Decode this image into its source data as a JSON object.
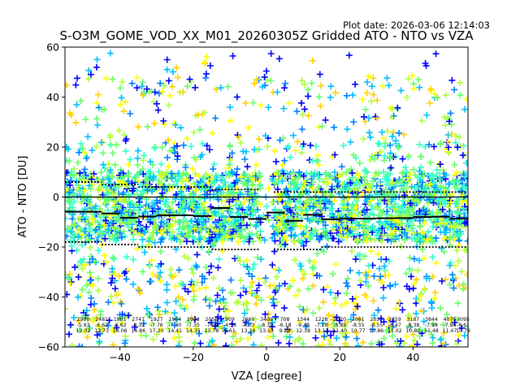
{
  "chart_data": {
    "type": "scatter",
    "title": "S-O3M_GOME_VOD_XX_M01_20260305Z Gridded ATO - NTO vs VZA",
    "plot_date": "Plot date: 2026-03-06 12:14:03",
    "xlabel": "VZA [degree]",
    "ylabel": "ATO - NTO [DU]",
    "xlim": [
      -55,
      55
    ],
    "ylim": [
      -60,
      60
    ],
    "xticks": [
      -40,
      -20,
      0,
      20,
      40
    ],
    "yticks": [
      -60,
      -40,
      -20,
      0,
      20,
      40,
      60
    ],
    "xtick_labels": [
      "−40",
      "−20",
      "0",
      "20",
      "40"
    ],
    "ytick_labels": [
      "−60",
      "−40",
      "−20",
      "0",
      "20",
      "40",
      "60"
    ],
    "marker": "+",
    "colors": {
      "blue": "#0000ff",
      "azure": "#0080ff",
      "cyan": "#00c0ff",
      "aqua": "#33ffcc",
      "green": "#66ff66",
      "lime": "#b0ff40",
      "yellow": "#ffff00",
      "gold": "#ffd000",
      "median_line": "#000000",
      "zero_line": "#000000"
    },
    "density_band": {
      "lower": -30,
      "upper": 22,
      "core_lower": -18,
      "core_upper": 10
    },
    "median_steps": [
      {
        "x0": -55,
        "x1": -45,
        "y": -5.9
      },
      {
        "x0": -45,
        "x1": -40,
        "y": -6.6
      },
      {
        "x0": -40,
        "x1": -35,
        "y": -8.3
      },
      {
        "x0": -35,
        "x1": -30,
        "y": -7.8
      },
      {
        "x0": -30,
        "x1": -25,
        "y": -7.3
      },
      {
        "x0": -25,
        "x1": -20,
        "y": -7.3
      },
      {
        "x0": -20,
        "x1": -15,
        "y": -7.6
      },
      {
        "x0": -15,
        "x1": -10,
        "y": -4.4
      },
      {
        "x0": -10,
        "x1": -5,
        "y": -8.0
      },
      {
        "x0": -5,
        "x1": 0,
        "y": -8.8
      },
      {
        "x0": 0,
        "x1": 5,
        "y": -6.2
      },
      {
        "x0": 5,
        "x1": 10,
        "y": -9.5
      },
      {
        "x0": 10,
        "x1": 15,
        "y": -7.1
      },
      {
        "x0": 15,
        "x1": 20,
        "y": -8.9
      },
      {
        "x0": 20,
        "x1": 25,
        "y": -8.6
      },
      {
        "x0": 25,
        "x1": 30,
        "y": -8.6
      },
      {
        "x0": 30,
        "x1": 35,
        "y": -8.5
      },
      {
        "x0": 35,
        "x1": 40,
        "y": -8.4
      },
      {
        "x0": 40,
        "x1": 45,
        "y": -8.0
      },
      {
        "x0": 45,
        "x1": 50,
        "y": -7.9
      },
      {
        "x0": 50,
        "x1": 55,
        "y": -8.6
      }
    ],
    "upper_dotted": [
      {
        "x0": -55,
        "x1": -45,
        "y": 6
      },
      {
        "x0": -45,
        "x1": -35,
        "y": 5
      },
      {
        "x0": -35,
        "x1": -15,
        "y": 4
      },
      {
        "x0": -15,
        "x1": -2,
        "y": 3
      },
      {
        "x0": 2,
        "x1": 15,
        "y": 2
      },
      {
        "x0": 15,
        "x1": 55,
        "y": 2
      }
    ],
    "lower_dotted": [
      {
        "x0": -55,
        "x1": -45,
        "y": -18
      },
      {
        "x0": -45,
        "x1": -35,
        "y": -19
      },
      {
        "x0": -35,
        "x1": -15,
        "y": -20
      },
      {
        "x0": -15,
        "x1": -2,
        "y": -21
      },
      {
        "x0": 2,
        "x1": 15,
        "y": -21
      },
      {
        "x0": 15,
        "x1": 55,
        "y": -20
      }
    ],
    "bin_stats": [
      {
        "x": -50,
        "count": "2990",
        "median": "-5.93",
        "sigma": "12.02"
      },
      {
        "x": -45,
        "count": "2481",
        "median": "-6.62",
        "sigma": "12.73"
      },
      {
        "x": -40,
        "count": "1961",
        "median": "-6.62",
        "sigma": "13.06"
      },
      {
        "x": -35,
        "count": "2747",
        "median": "-8.32",
        "sigma": "14.86"
      },
      {
        "x": -30,
        "count": "1927",
        "median": "-7.76",
        "sigma": "17.20"
      },
      {
        "x": -25,
        "count": "1964",
        "median": "-7.30",
        "sigma": "14.41"
      },
      {
        "x": -20,
        "count": "2023",
        "median": "-7.35",
        "sigma": "14.35"
      },
      {
        "x": -15,
        "count": "2058",
        "median": "-7.59",
        "sigma": "13.78"
      },
      {
        "x": -10,
        "count": "909",
        "median": "-4.36",
        "sigma": "9.61"
      },
      {
        "x": -5,
        "count": "2060",
        "median": "-8.03",
        "sigma": "13.24"
      },
      {
        "x": 0,
        "count": "3409",
        "median": "-8.79",
        "sigma": "13.13"
      },
      {
        "x": 5,
        "count": "708",
        "median": "-6.18",
        "sigma": "9.24"
      },
      {
        "x": 10,
        "count": "1344",
        "median": "-9.48",
        "sigma": "12.18"
      },
      {
        "x": 15,
        "count": "1228",
        "median": "-7.10",
        "sigma": "13.12"
      },
      {
        "x": 20,
        "count": "2020",
        "median": "-8.89",
        "sigma": "11.40"
      },
      {
        "x": 25,
        "count": "2061",
        "median": "-8.55",
        "sigma": "10.77"
      },
      {
        "x": 30,
        "count": "2037",
        "median": "-8.55",
        "sigma": "10.86"
      },
      {
        "x": 35,
        "count": "2359",
        "median": "-8.47",
        "sigma": "11.02"
      },
      {
        "x": 40,
        "count": "3187",
        "median": "-8.38",
        "sigma": "10.82"
      },
      {
        "x": 45,
        "count": "3844",
        "median": "-7.98",
        "sigma": "11.48"
      },
      {
        "x": 50,
        "count": "4075",
        "median": "-7.86",
        "sigma": "11.47"
      },
      {
        "x": 55,
        "count": "3095",
        "median": "-8.61",
        "sigma": "10.78"
      }
    ]
  }
}
